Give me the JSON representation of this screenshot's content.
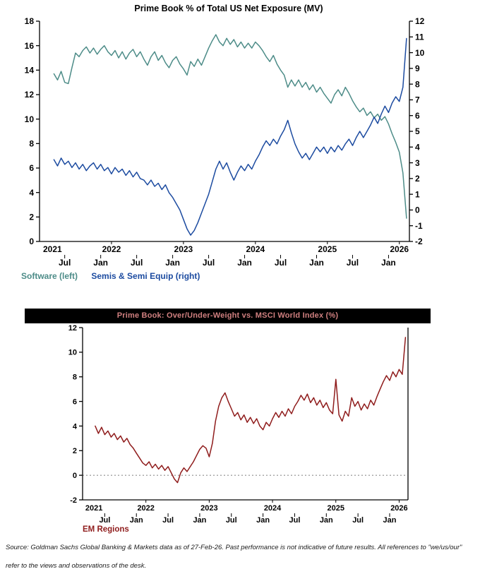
{
  "chart_data": [
    {
      "type": "line",
      "title": "Prime Book % of Total US Net Exposure (MV)",
      "xlim": [
        2021.0,
        2026.14
      ],
      "x_start": 2021.2,
      "x_step": 0.05,
      "left_axis": {
        "min": 0,
        "max": 18,
        "ticks": [
          0,
          2,
          4,
          6,
          8,
          10,
          12,
          14,
          16,
          18
        ]
      },
      "right_axis": {
        "min": -2,
        "max": 12,
        "ticks": [
          -2,
          -1,
          0,
          1,
          2,
          3,
          4,
          5,
          6,
          7,
          8,
          9,
          10,
          11,
          12
        ]
      },
      "year_ticks": [
        {
          "x": 2021.18,
          "label": "2021"
        },
        {
          "x": 2022,
          "label": "2022"
        },
        {
          "x": 2023,
          "label": "2023"
        },
        {
          "x": 2024,
          "label": "2024"
        },
        {
          "x": 2025,
          "label": "2025"
        },
        {
          "x": 2026,
          "label": "2026"
        }
      ],
      "month_ticks": [
        {
          "x": 2021.35,
          "label": "Jul"
        },
        {
          "x": 2021.85,
          "label": "Jan"
        },
        {
          "x": 2022.35,
          "label": "Jul"
        },
        {
          "x": 2022.85,
          "label": "Jan"
        },
        {
          "x": 2023.35,
          "label": "Jul"
        },
        {
          "x": 2023.85,
          "label": "Jan"
        },
        {
          "x": 2024.35,
          "label": "Jul"
        },
        {
          "x": 2024.85,
          "label": "Jan"
        },
        {
          "x": 2025.35,
          "label": "Jul"
        },
        {
          "x": 2025.85,
          "label": "Jan"
        }
      ],
      "series": [
        {
          "name": "Software (left)",
          "axis": "left",
          "color": "#4d8c88",
          "values": [
            13.7,
            13.2,
            13.9,
            13.0,
            12.9,
            14.2,
            15.4,
            15.1,
            15.6,
            15.9,
            15.4,
            15.8,
            15.3,
            15.7,
            16.0,
            15.5,
            15.2,
            15.6,
            15.0,
            15.5,
            14.9,
            15.4,
            15.7,
            15.1,
            15.5,
            14.9,
            14.4,
            15.1,
            15.5,
            14.8,
            15.2,
            14.6,
            14.2,
            14.8,
            15.1,
            14.5,
            14.1,
            13.6,
            14.7,
            14.3,
            14.9,
            14.4,
            15.1,
            15.8,
            16.4,
            16.9,
            16.3,
            16.0,
            16.6,
            16.1,
            16.5,
            15.9,
            16.3,
            15.8,
            16.2,
            15.8,
            16.3,
            16.0,
            15.6,
            15.1,
            14.7,
            15.2,
            14.5,
            14.0,
            13.6,
            12.6,
            13.2,
            12.7,
            13.2,
            12.6,
            13.0,
            12.4,
            12.8,
            12.2,
            12.6,
            12.1,
            11.7,
            11.3,
            12.0,
            12.4,
            11.9,
            12.6,
            12.1,
            11.5,
            11.0,
            10.6,
            10.9,
            10.3,
            10.6,
            10.1,
            10.4,
            9.9,
            10.2,
            9.6,
            8.8,
            8.1,
            7.3,
            5.6,
            1.9
          ]
        },
        {
          "name": "Semis & Semi Equip (right)",
          "axis": "right",
          "color": "#1c4ba0",
          "values": [
            3.2,
            2.8,
            3.3,
            2.9,
            3.1,
            2.7,
            3.0,
            2.6,
            2.9,
            2.5,
            2.8,
            3.0,
            2.6,
            2.9,
            2.5,
            2.7,
            2.3,
            2.7,
            2.4,
            2.6,
            2.2,
            2.5,
            2.1,
            2.4,
            2.0,
            1.9,
            1.6,
            1.9,
            1.5,
            1.7,
            1.3,
            1.6,
            1.1,
            0.8,
            0.4,
            0.0,
            -0.6,
            -1.2,
            -1.6,
            -1.3,
            -0.8,
            -0.2,
            0.4,
            1.0,
            1.8,
            2.6,
            3.1,
            2.6,
            3.0,
            2.4,
            1.9,
            2.4,
            2.8,
            2.5,
            2.9,
            2.6,
            3.1,
            3.5,
            4.0,
            4.4,
            4.1,
            4.5,
            4.2,
            4.7,
            5.1,
            5.7,
            4.9,
            4.2,
            3.7,
            3.3,
            3.6,
            3.2,
            3.6,
            4.0,
            3.7,
            4.0,
            3.6,
            4.0,
            3.7,
            4.1,
            3.8,
            4.2,
            4.5,
            4.1,
            4.6,
            5.0,
            4.6,
            5.0,
            5.4,
            5.9,
            5.5,
            6.1,
            6.6,
            6.2,
            6.8,
            7.2,
            6.9,
            7.8,
            10.9
          ]
        }
      ]
    },
    {
      "type": "line",
      "title": "Prime Book: Over/Under-Weight vs. MSCI World Index (%)",
      "title_bg": "#000000",
      "title_color": "#d08080",
      "xlim": [
        2021.0,
        2026.14
      ],
      "x_start": 2021.2,
      "x_step": 0.05,
      "left_axis": {
        "min": -2,
        "max": 12,
        "ticks": [
          -2,
          0,
          2,
          4,
          6,
          8,
          10,
          12
        ]
      },
      "zero_line_dashed": true,
      "year_ticks": [
        {
          "x": 2021.18,
          "label": "2021"
        },
        {
          "x": 2022,
          "label": "2022"
        },
        {
          "x": 2023,
          "label": "2023"
        },
        {
          "x": 2024,
          "label": "2024"
        },
        {
          "x": 2025,
          "label": "2025"
        },
        {
          "x": 2026,
          "label": "2026"
        }
      ],
      "month_ticks": [
        {
          "x": 2021.35,
          "label": "Jul"
        },
        {
          "x": 2021.85,
          "label": "Jan"
        },
        {
          "x": 2022.35,
          "label": "Jul"
        },
        {
          "x": 2022.85,
          "label": "Jan"
        },
        {
          "x": 2023.35,
          "label": "Jul"
        },
        {
          "x": 2023.85,
          "label": "Jan"
        },
        {
          "x": 2024.35,
          "label": "Jul"
        },
        {
          "x": 2024.85,
          "label": "Jan"
        },
        {
          "x": 2025.35,
          "label": "Jul"
        },
        {
          "x": 2025.85,
          "label": "Jan"
        }
      ],
      "series": [
        {
          "name": "EM Regions",
          "axis": "left",
          "color": "#8f1c1c",
          "values": [
            4.0,
            3.4,
            3.9,
            3.3,
            3.6,
            3.1,
            3.4,
            2.9,
            3.2,
            2.7,
            3.0,
            2.5,
            2.2,
            1.8,
            1.4,
            1.0,
            0.8,
            1.1,
            0.6,
            0.9,
            0.5,
            0.8,
            0.4,
            0.7,
            0.2,
            -0.3,
            -0.6,
            0.2,
            0.6,
            0.3,
            0.7,
            1.1,
            1.6,
            2.1,
            2.4,
            2.2,
            1.5,
            2.6,
            4.4,
            5.6,
            6.3,
            6.7,
            6.0,
            5.4,
            4.8,
            5.1,
            4.5,
            4.9,
            4.3,
            4.7,
            4.2,
            4.6,
            4.0,
            3.7,
            4.3,
            4.0,
            4.6,
            5.1,
            4.7,
            5.2,
            4.8,
            5.4,
            5.0,
            5.6,
            6.0,
            6.5,
            6.1,
            6.6,
            5.9,
            6.3,
            5.7,
            6.1,
            5.5,
            5.9,
            5.3,
            5.0,
            7.8,
            4.9,
            4.4,
            5.2,
            4.8,
            6.3,
            5.6,
            6.0,
            5.3,
            5.8,
            5.4,
            6.1,
            5.7,
            6.4,
            7.0,
            7.6,
            8.1,
            7.7,
            8.4,
            8.0,
            8.6,
            8.2,
            11.2
          ]
        }
      ]
    }
  ],
  "footer": {
    "line1": "Source: Goldman Sachs Global Banking & Markets data as of 27-Feb-26. Past performance is not indicative of future results. All references to \"we/us/our\"",
    "line2": "refer to the views and observations of the desk."
  }
}
